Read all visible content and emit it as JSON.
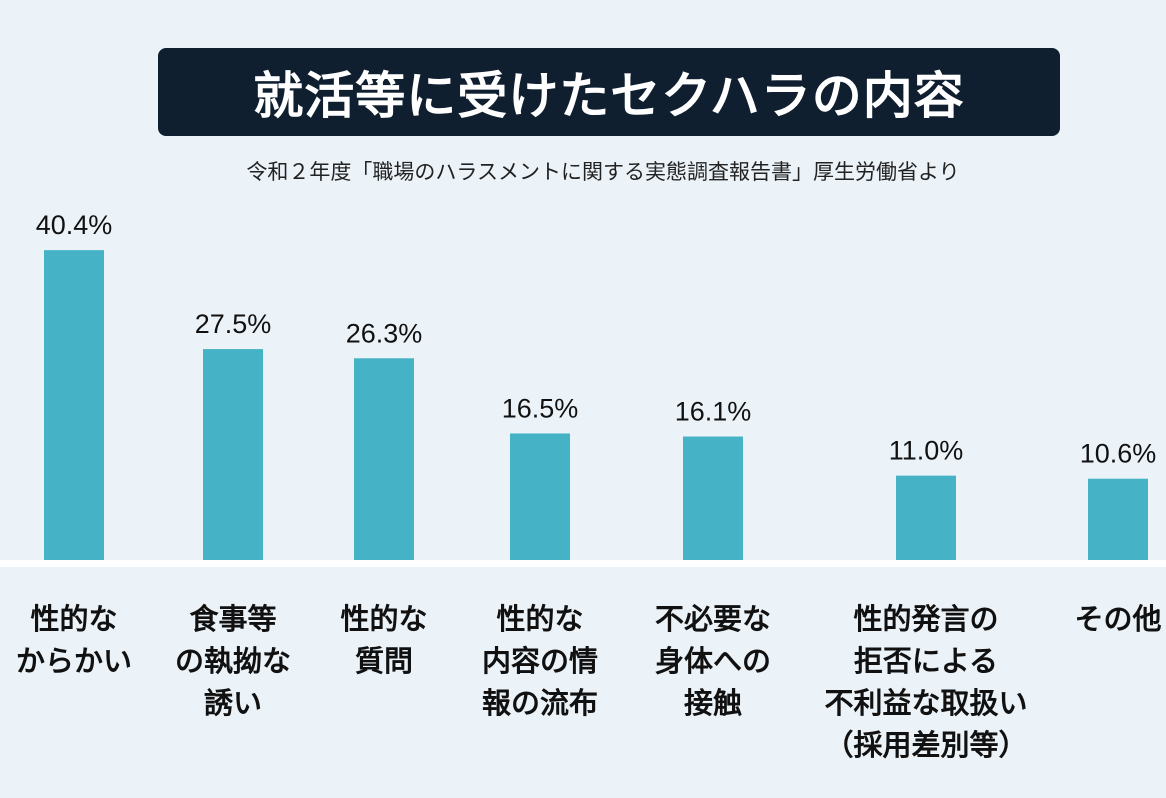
{
  "title": "就活等に受けたセクハラの内容",
  "subtitle": "令和２年度「職場のハラスメントに関する実態調査報告書」厚生労働省より",
  "colors": {
    "bar": "#45b3c5",
    "title_bg": "#0f1f30",
    "background": "#ecf3f8"
  },
  "chart_data": {
    "type": "bar",
    "title": "就活等に受けたセクハラの内容",
    "subtitle": "令和２年度「職場のハラスメントに関する実態調査報告書」厚生労働省より",
    "categories": [
      "性的な\nからかい",
      "食事等\nの執拗な\n誘い",
      "性的な\n質問",
      "性的な\n内容の情\n報の流布",
      "不必要な\n身体への\n接触",
      "性的発言の\n拒否による\n不利益な取扱い\n（採用差別等）",
      "その他"
    ],
    "values": [
      40.4,
      27.5,
      26.3,
      16.5,
      16.1,
      11.0,
      10.6
    ],
    "labels": [
      "40.4%",
      "27.5%",
      "26.3%",
      "16.5%",
      "16.1%",
      "11.0%",
      "10.6%"
    ],
    "unit": "%",
    "grid": false,
    "legend": "none"
  }
}
